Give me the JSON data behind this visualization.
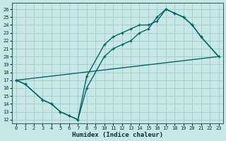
{
  "xlabel": "Humidex (Indice chaleur)",
  "background_color": "#c8e8e8",
  "grid_color": "#aacccc",
  "line_color": "#006666",
  "xlim": [
    -0.5,
    23.5
  ],
  "ylim": [
    11.5,
    26.8
  ],
  "xticks": [
    0,
    1,
    2,
    3,
    4,
    5,
    6,
    7,
    8,
    9,
    10,
    11,
    12,
    13,
    14,
    15,
    16,
    17,
    18,
    19,
    20,
    21,
    22,
    23
  ],
  "yticks": [
    12,
    13,
    14,
    15,
    16,
    17,
    18,
    19,
    20,
    21,
    22,
    23,
    24,
    25,
    26
  ],
  "line1_x": [
    0,
    1,
    3,
    4,
    5,
    6,
    7,
    8,
    10,
    11,
    12,
    13,
    14,
    15,
    16,
    17,
    18,
    19,
    20,
    21,
    23
  ],
  "line1_y": [
    17,
    16.5,
    14.5,
    14,
    13,
    12.5,
    12,
    17.5,
    21.5,
    22.5,
    23,
    23.5,
    24,
    24,
    24.5,
    26,
    25.5,
    25,
    24,
    22.5,
    20
  ],
  "line2_x": [
    0,
    1,
    3,
    4,
    5,
    6,
    7,
    8,
    10,
    11,
    12,
    13,
    14,
    15,
    16,
    17,
    18,
    19,
    20,
    21,
    23
  ],
  "line2_y": [
    17,
    16.5,
    14.5,
    14,
    13,
    12.5,
    12,
    16,
    20,
    21,
    21.5,
    22,
    23,
    23.5,
    25,
    26,
    25.5,
    25,
    24,
    22.5,
    20
  ],
  "line3_x": [
    0,
    23
  ],
  "line3_y": [
    17,
    20
  ]
}
